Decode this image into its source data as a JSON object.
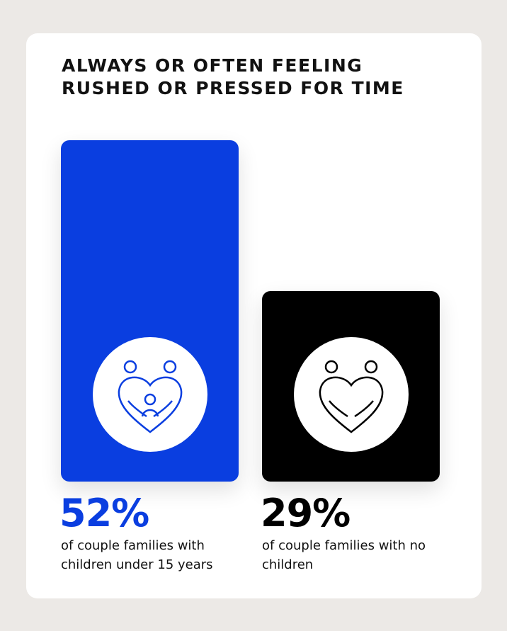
{
  "chart_data": {
    "type": "bar",
    "title": "ALWAYS OR OFTEN FEELING RUSHED OR PRESSED FOR TIME",
    "categories": [
      "of couple families with children under 15 years",
      "of couple families with no children"
    ],
    "values": [
      52,
      29
    ],
    "value_labels": [
      "52%",
      "29%"
    ],
    "colors": [
      "#0a3ee0",
      "#000000"
    ]
  }
}
